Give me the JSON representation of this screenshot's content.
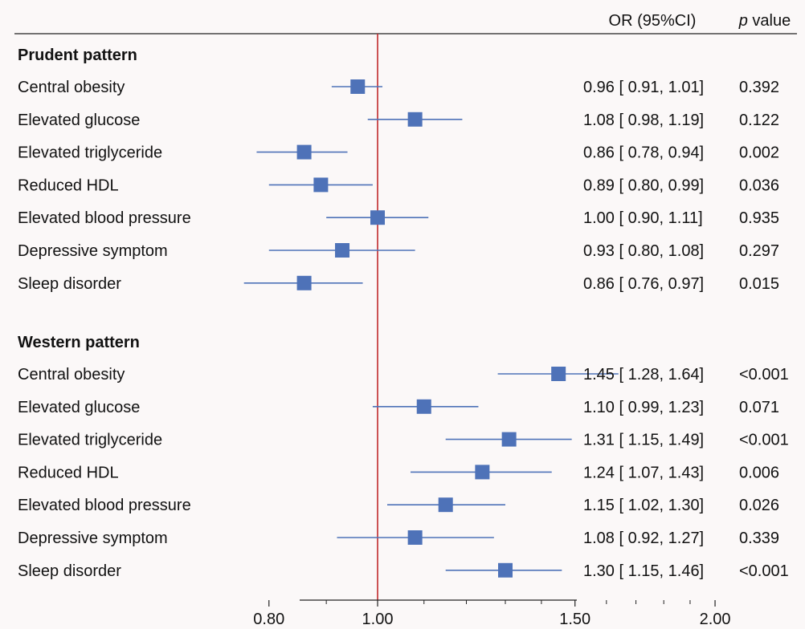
{
  "chart_data": {
    "type": "forest",
    "x_scale": "log",
    "reference_value": 1.0,
    "x_ticks": [
      {
        "value": 0.8,
        "label": "0.80"
      },
      {
        "value": 1.0,
        "label": "1.00"
      },
      {
        "value": 1.5,
        "label": "1.50"
      },
      {
        "value": 2.0,
        "label": "2.00"
      }
    ],
    "header": {
      "or_label": "OR (95%CI)",
      "p_italic": "p",
      "p_rest": " value"
    },
    "groups": [
      {
        "name": "Prudent pattern",
        "rows": [
          {
            "label": "Central obesity",
            "or": 0.96,
            "lo": 0.91,
            "hi": 1.01,
            "text": "0.96 [ 0.91,  1.01]",
            "p": "0.392"
          },
          {
            "label": "Elevated glucose",
            "or": 1.08,
            "lo": 0.98,
            "hi": 1.19,
            "text": "1.08 [ 0.98,  1.19]",
            "p": "0.122"
          },
          {
            "label": "Elevated triglyceride",
            "or": 0.86,
            "lo": 0.78,
            "hi": 0.94,
            "text": "0.86 [ 0.78,  0.94]",
            "p": "0.002"
          },
          {
            "label": "Reduced HDL",
            "or": 0.89,
            "lo": 0.8,
            "hi": 0.99,
            "text": "0.89 [ 0.80,  0.99]",
            "p": "0.036"
          },
          {
            "label": "Elevated blood pressure",
            "or": 1.0,
            "lo": 0.9,
            "hi": 1.11,
            "text": "1.00 [ 0.90,  1.11]",
            "p": "0.935"
          },
          {
            "label": "Depressive symptom",
            "or": 0.93,
            "lo": 0.8,
            "hi": 1.08,
            "text": "0.93 [ 0.80,  1.08]",
            "p": "0.297"
          },
          {
            "label": "Sleep disorder",
            "or": 0.86,
            "lo": 0.76,
            "hi": 0.97,
            "text": "0.86 [ 0.76,  0.97]",
            "p": "0.015"
          }
        ]
      },
      {
        "name": "Western pattern",
        "rows": [
          {
            "label": "Central obesity",
            "or": 1.45,
            "lo": 1.28,
            "hi": 1.64,
            "text": "1.45 [ 1.28,  1.64]",
            "p": "<0.001"
          },
          {
            "label": "Elevated glucose",
            "or": 1.1,
            "lo": 0.99,
            "hi": 1.23,
            "text": "1.10 [ 0.99,  1.23]",
            "p": "0.071"
          },
          {
            "label": "Elevated triglyceride",
            "or": 1.31,
            "lo": 1.15,
            "hi": 1.49,
            "text": "1.31 [ 1.15,  1.49]",
            "p": "<0.001"
          },
          {
            "label": "Reduced HDL",
            "or": 1.24,
            "lo": 1.07,
            "hi": 1.43,
            "text": "1.24 [ 1.07,  1.43]",
            "p": "0.006"
          },
          {
            "label": "Elevated blood pressure",
            "or": 1.15,
            "lo": 1.02,
            "hi": 1.3,
            "text": "1.15 [ 1.02,  1.30]",
            "p": "0.026"
          },
          {
            "label": "Depressive symptom",
            "or": 1.08,
            "lo": 0.92,
            "hi": 1.27,
            "text": "1.08 [ 0.92,  1.27]",
            "p": "0.339"
          },
          {
            "label": "Sleep disorder",
            "or": 1.3,
            "lo": 1.15,
            "hi": 1.46,
            "text": "1.30 [ 1.15,  1.46]",
            "p": "<0.001"
          }
        ]
      }
    ],
    "colors": {
      "marker": "#4e72b8",
      "ref_line": "#c0282b",
      "axis": "#222222"
    }
  }
}
